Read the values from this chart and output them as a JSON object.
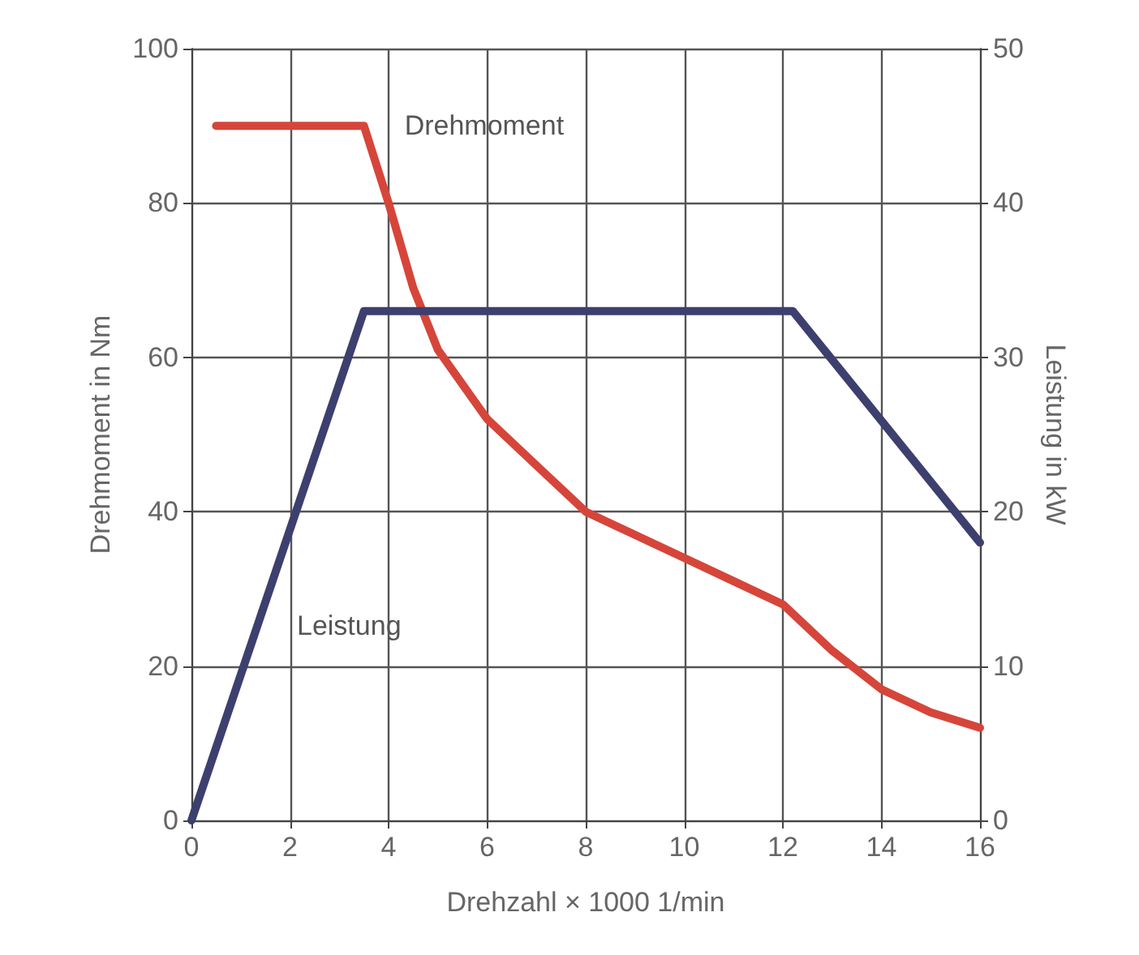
{
  "chart_data": {
    "type": "line",
    "xlabel": "Drehzahl × 1000 1/min",
    "ylabel": "Drehmoment in Nm",
    "y2label": "Leistung in kW",
    "xlim": [
      0,
      16
    ],
    "xticks": [
      0,
      2,
      4,
      6,
      8,
      10,
      12,
      14,
      16
    ],
    "ylim": [
      0,
      100
    ],
    "yticks": [
      0,
      20,
      40,
      60,
      80,
      100
    ],
    "y2lim": [
      0,
      50
    ],
    "y2ticks": [
      0,
      10,
      20,
      30,
      40,
      50
    ],
    "grid": true,
    "legend": false,
    "marker": "none",
    "line_style": "solid",
    "series": [
      {
        "name": "Drehmoment",
        "color": "#d6453a",
        "x": [
          0.5,
          3.5,
          4,
          4.5,
          5,
          6,
          7,
          8,
          9,
          10,
          11,
          12,
          13,
          14,
          15,
          16
        ],
        "values": [
          90,
          90,
          80,
          69,
          61,
          52,
          46,
          40,
          37,
          34,
          31,
          28,
          22,
          17,
          14,
          12
        ]
      },
      {
        "name": "Leistung",
        "color": "#3d3f6e",
        "axis": "y2",
        "x": [
          0,
          3.5,
          12.2,
          16
        ],
        "values": [
          0,
          33,
          33,
          18
        ]
      }
    ]
  }
}
